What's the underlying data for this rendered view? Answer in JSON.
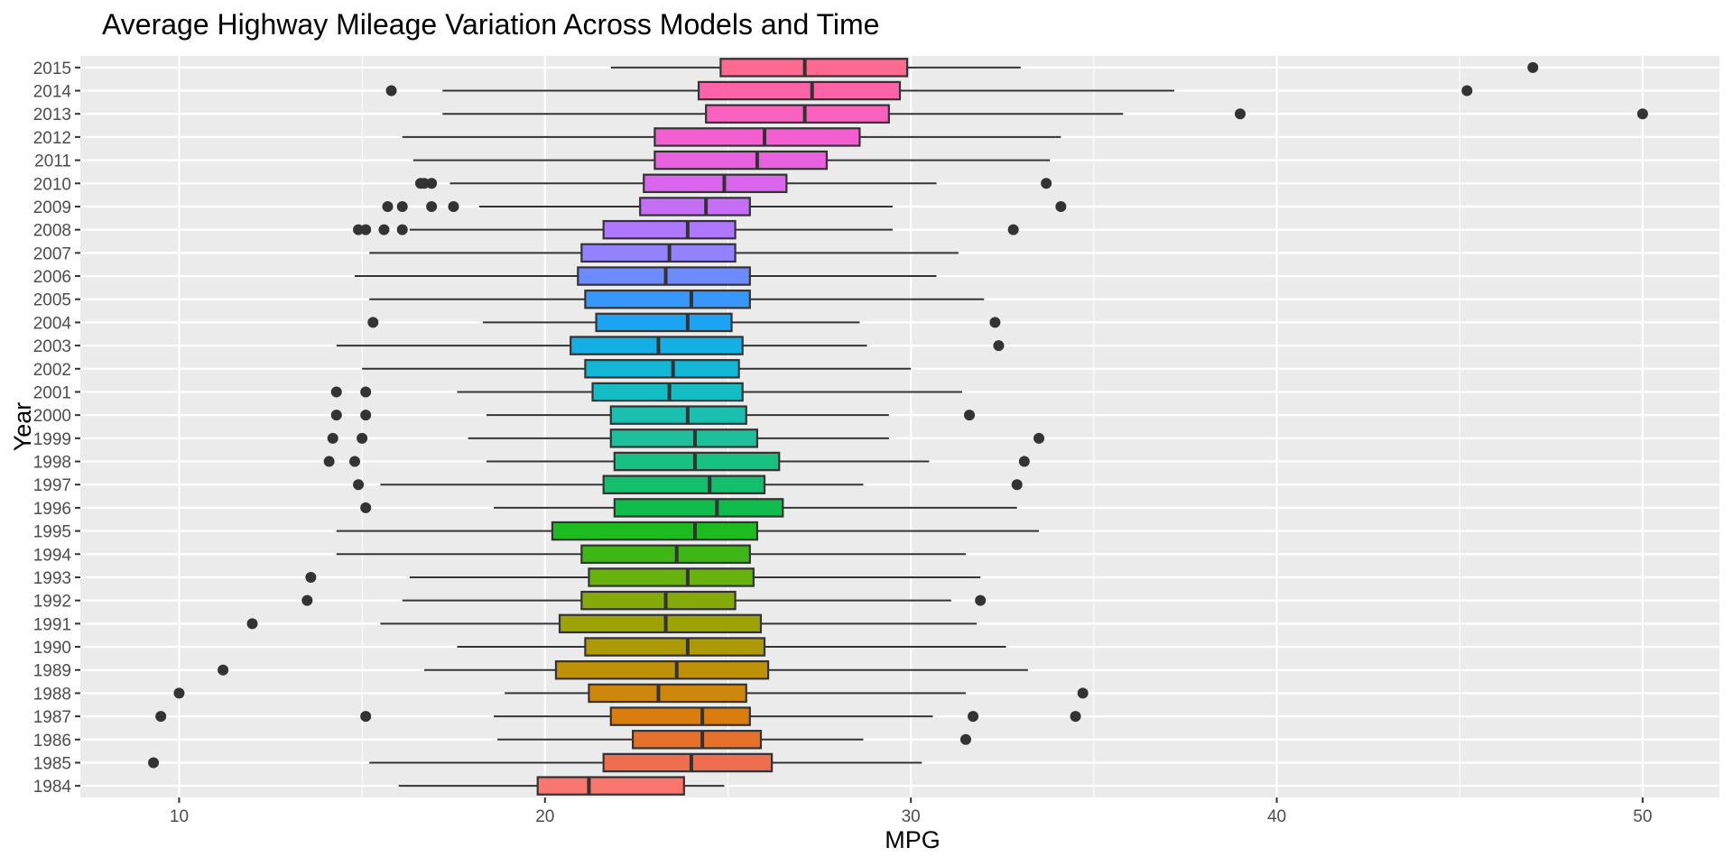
{
  "chart_data": {
    "type": "boxplot",
    "orientation": "horizontal",
    "title": "Average Highway Mileage Variation Across Models and Time",
    "xlabel": "MPG",
    "ylabel": "Year",
    "xlim": [
      7.3,
      52.1
    ],
    "x_ticks": [
      10,
      20,
      30,
      40,
      50
    ],
    "grid": true,
    "legend": "none",
    "categories": [
      "1984",
      "1985",
      "1986",
      "1987",
      "1988",
      "1989",
      "1990",
      "1991",
      "1992",
      "1993",
      "1994",
      "1995",
      "1996",
      "1997",
      "1998",
      "1999",
      "2000",
      "2001",
      "2002",
      "2003",
      "2004",
      "2005",
      "2006",
      "2007",
      "2008",
      "2009",
      "2010",
      "2011",
      "2012",
      "2013",
      "2014",
      "2015"
    ],
    "boxes": [
      {
        "year": "1984",
        "color": "#F8766D",
        "min": 16.0,
        "q1": 19.8,
        "median": 21.2,
        "q3": 23.8,
        "max": 24.9,
        "outliers": []
      },
      {
        "year": "1985",
        "color": "#EE6D4E",
        "min": 15.2,
        "q1": 21.6,
        "median": 24.0,
        "q3": 26.2,
        "max": 30.3,
        "outliers": [
          9.3
        ]
      },
      {
        "year": "1986",
        "color": "#E6702C",
        "min": 18.7,
        "q1": 22.4,
        "median": 24.3,
        "q3": 25.9,
        "max": 28.7,
        "outliers": [
          31.5
        ]
      },
      {
        "year": "1987",
        "color": "#DB7D0E",
        "min": 18.6,
        "q1": 21.8,
        "median": 24.3,
        "q3": 25.6,
        "max": 30.6,
        "outliers": [
          9.5,
          15.1,
          31.7,
          34.5
        ]
      },
      {
        "year": "1988",
        "color": "#CE870A",
        "min": 18.9,
        "q1": 21.2,
        "median": 23.1,
        "q3": 25.5,
        "max": 31.5,
        "outliers": [
          10.0,
          34.7
        ]
      },
      {
        "year": "1989",
        "color": "#BF9108",
        "min": 16.7,
        "q1": 20.3,
        "median": 23.6,
        "q3": 26.1,
        "max": 33.2,
        "outliers": [
          11.2
        ]
      },
      {
        "year": "1990",
        "color": "#AE9A06",
        "min": 17.6,
        "q1": 21.1,
        "median": 23.9,
        "q3": 26.0,
        "max": 32.6,
        "outliers": []
      },
      {
        "year": "1991",
        "color": "#9BA305",
        "min": 15.5,
        "q1": 20.4,
        "median": 23.3,
        "q3": 25.9,
        "max": 31.8,
        "outliers": [
          12.0
        ]
      },
      {
        "year": "1992",
        "color": "#84AB0A",
        "min": 16.1,
        "q1": 21.0,
        "median": 23.3,
        "q3": 25.2,
        "max": 31.1,
        "outliers": [
          13.5,
          31.9
        ]
      },
      {
        "year": "1993",
        "color": "#68B20F",
        "min": 16.3,
        "q1": 21.2,
        "median": 23.9,
        "q3": 25.7,
        "max": 31.9,
        "outliers": [
          13.6
        ]
      },
      {
        "year": "1994",
        "color": "#3EB716",
        "min": 14.3,
        "q1": 21.0,
        "median": 23.6,
        "q3": 25.6,
        "max": 31.5,
        "outliers": []
      },
      {
        "year": "1995",
        "color": "#1CBB1F",
        "min": 14.3,
        "q1": 20.2,
        "median": 24.1,
        "q3": 25.8,
        "max": 33.5,
        "outliers": []
      },
      {
        "year": "1996",
        "color": "#10BD4C",
        "min": 18.6,
        "q1": 21.9,
        "median": 24.7,
        "q3": 26.5,
        "max": 32.9,
        "outliers": [
          15.1
        ]
      },
      {
        "year": "1997",
        "color": "#13BF6A",
        "min": 15.5,
        "q1": 21.6,
        "median": 24.5,
        "q3": 26.0,
        "max": 28.7,
        "outliers": [
          14.9,
          32.9
        ]
      },
      {
        "year": "1998",
        "color": "#19C083",
        "min": 18.4,
        "q1": 21.9,
        "median": 24.1,
        "q3": 26.4,
        "max": 30.5,
        "outliers": [
          14.1,
          14.8,
          33.1
        ]
      },
      {
        "year": "1999",
        "color": "#1DC09A",
        "min": 17.9,
        "q1": 21.8,
        "median": 24.1,
        "q3": 25.8,
        "max": 29.4,
        "outliers": [
          14.2,
          15.0,
          33.5
        ]
      },
      {
        "year": "2000",
        "color": "#1BBFAF",
        "min": 18.4,
        "q1": 21.8,
        "median": 23.9,
        "q3": 25.5,
        "max": 29.4,
        "outliers": [
          14.3,
          15.1,
          31.6
        ]
      },
      {
        "year": "2001",
        "color": "#16BCC3",
        "min": 17.6,
        "q1": 21.3,
        "median": 23.4,
        "q3": 25.4,
        "max": 31.4,
        "outliers": [
          14.3,
          15.1
        ]
      },
      {
        "year": "2002",
        "color": "#13B7D6",
        "min": 15.0,
        "q1": 21.1,
        "median": 23.5,
        "q3": 25.3,
        "max": 30.0,
        "outliers": []
      },
      {
        "year": "2003",
        "color": "#15AFE5",
        "min": 14.3,
        "q1": 20.7,
        "median": 23.1,
        "q3": 25.4,
        "max": 28.8,
        "outliers": [
          32.4
        ]
      },
      {
        "year": "2004",
        "color": "#1CA3F2",
        "min": 18.3,
        "q1": 21.4,
        "median": 23.9,
        "q3": 25.1,
        "max": 28.6,
        "outliers": [
          15.3,
          32.3
        ]
      },
      {
        "year": "2005",
        "color": "#3797FA",
        "min": 15.2,
        "q1": 21.1,
        "median": 24.0,
        "q3": 25.6,
        "max": 32.0,
        "outliers": []
      },
      {
        "year": "2006",
        "color": "#6E8BFE",
        "min": 14.8,
        "q1": 20.9,
        "median": 23.3,
        "q3": 25.6,
        "max": 30.7,
        "outliers": []
      },
      {
        "year": "2007",
        "color": "#9381FE",
        "min": 15.2,
        "q1": 21.0,
        "median": 23.4,
        "q3": 25.2,
        "max": 31.3,
        "outliers": []
      },
      {
        "year": "2008",
        "color": "#AF77FB",
        "min": 16.3,
        "q1": 21.6,
        "median": 23.9,
        "q3": 25.2,
        "max": 29.5,
        "outliers": [
          14.9,
          15.1,
          15.6,
          16.1,
          32.8
        ]
      },
      {
        "year": "2009",
        "color": "#C66EF5",
        "min": 18.2,
        "q1": 22.6,
        "median": 24.4,
        "q3": 25.6,
        "max": 29.5,
        "outliers": [
          15.7,
          16.1,
          16.9,
          17.5,
          34.1
        ]
      },
      {
        "year": "2010",
        "color": "#D966EC",
        "min": 17.4,
        "q1": 22.7,
        "median": 24.9,
        "q3": 26.6,
        "max": 30.7,
        "outliers": [
          16.6,
          16.7,
          16.9,
          33.7
        ]
      },
      {
        "year": "2011",
        "color": "#E961DF",
        "min": 16.4,
        "q1": 23.0,
        "median": 25.8,
        "q3": 27.7,
        "max": 33.8,
        "outliers": []
      },
      {
        "year": "2012",
        "color": "#F35FD0",
        "min": 16.1,
        "q1": 23.0,
        "median": 26.0,
        "q3": 28.6,
        "max": 34.1,
        "outliers": []
      },
      {
        "year": "2013",
        "color": "#FA60BE",
        "min": 17.2,
        "q1": 24.4,
        "median": 27.1,
        "q3": 29.4,
        "max": 35.8,
        "outliers": [
          39.0,
          50.0
        ]
      },
      {
        "year": "2014",
        "color": "#FD64A8",
        "min": 17.2,
        "q1": 24.2,
        "median": 27.3,
        "q3": 29.7,
        "max": 37.2,
        "outliers": [
          15.8,
          45.2
        ]
      },
      {
        "year": "2015",
        "color": "#FC6A8F",
        "min": 21.8,
        "q1": 24.8,
        "median": 27.1,
        "q3": 29.9,
        "max": 33.0,
        "outliers": [
          47.0
        ]
      }
    ]
  }
}
